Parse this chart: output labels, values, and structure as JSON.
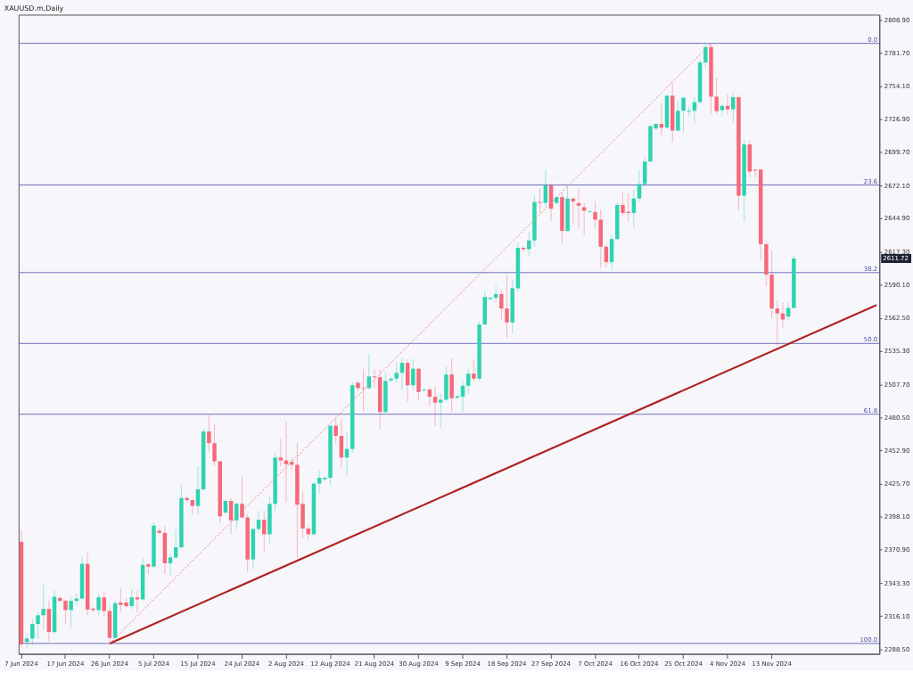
{
  "chart_data": {
    "type": "candlestick",
    "title": "XAUUSD.m,Daily",
    "categories": [
      "7 Jun 2024",
      null,
      null,
      null,
      null,
      null,
      null,
      null,
      "17 Jun 2024",
      null,
      null,
      null,
      null,
      null,
      null,
      null,
      "26 Jun 2024",
      null,
      null,
      null,
      null,
      null,
      null,
      null,
      "5 Jul 2024",
      null,
      null,
      null,
      null,
      null,
      null,
      null,
      "15 Jul 2024",
      null,
      null,
      null,
      null,
      null,
      null,
      null,
      "24 Jul 2024",
      null,
      null,
      null,
      null,
      null,
      null,
      null,
      "2 Aug 2024",
      null,
      null,
      null,
      null,
      null,
      null,
      null,
      "12 Aug 2024",
      null,
      null,
      null,
      null,
      null,
      null,
      null,
      "21 Aug 2024",
      null,
      null,
      null,
      null,
      null,
      null,
      null,
      "30 Aug 2024",
      null,
      null,
      null,
      null,
      null,
      null,
      null,
      "9 Sep 2024",
      null,
      null,
      null,
      null,
      null,
      null,
      null,
      "18 Sep 2024",
      null,
      null,
      null,
      null,
      null,
      null,
      null,
      "27 Sep 2024",
      null,
      null,
      null,
      null,
      null,
      null,
      null,
      "7 Oct 2024",
      null,
      null,
      null,
      null,
      null,
      null,
      null,
      "16 Oct 2024",
      null,
      null,
      null,
      null,
      null,
      null,
      null,
      "25 Oct 2024",
      null,
      null,
      null,
      null,
      null,
      null,
      null,
      "4 Nov 2024",
      null,
      null,
      null,
      null,
      null,
      null,
      null,
      "13 Nov 2024",
      null,
      null,
      null,
      null,
      null,
      null,
      null,
      null,
      null,
      null,
      null,
      null,
      null,
      null,
      null,
      null,
      null,
      null,
      null
    ],
    "ohlc": [
      [
        2377.5,
        2387.6,
        2290.0,
        2292.8
      ],
      [
        2294.7,
        2301.2,
        2289.5,
        2297.6
      ],
      [
        2297.6,
        2313.9,
        2292.3,
        2309.6
      ],
      [
        2309.6,
        2319.2,
        2297.6,
        2316.8
      ],
      [
        2316.8,
        2341.9,
        2304.8,
        2322.0
      ],
      [
        2322.0,
        2328.7,
        2295.2,
        2302.9
      ],
      [
        2302.9,
        2337.1,
        2301.2,
        2332.1
      ],
      [
        2331.1,
        2332.3,
        2327.5,
        2328.7
      ],
      [
        2328.7,
        2329.9,
        2310.1,
        2321.1
      ],
      [
        2321.1,
        2332.3,
        2306.7,
        2328.7
      ],
      [
        2328.7,
        2334.7,
        2325.1,
        2330.6
      ],
      [
        2330.6,
        2365.3,
        2328.7,
        2359.3
      ],
      [
        2359.3,
        2368.9,
        2316.8,
        2321.5
      ],
      [
        2322.3,
        2323.9,
        2319.2,
        2321.1
      ],
      [
        2321.1,
        2334.7,
        2316.8,
        2331.6
      ],
      [
        2331.6,
        2337.1,
        2315.6,
        2320.3
      ],
      [
        2320.3,
        2323.9,
        2293.5,
        2298.1
      ],
      [
        2298.1,
        2328.7,
        2296.4,
        2326.8
      ],
      [
        2327.3,
        2339.5,
        2319.2,
        2325.4
      ],
      [
        2327.3,
        2331.1,
        2322.7,
        2324.4
      ],
      [
        2324.4,
        2338.3,
        2322.0,
        2331.6
      ],
      [
        2331.6,
        2337.1,
        2319.2,
        2329.9
      ],
      [
        2329.9,
        2364.6,
        2328.7,
        2358.4
      ],
      [
        2358.9,
        2359.8,
        2350.7,
        2357.0
      ],
      [
        2357.0,
        2393.3,
        2356.2,
        2390.9
      ],
      [
        2386.6,
        2388.5,
        2383.8,
        2384.9
      ],
      [
        2384.9,
        2390.9,
        2350.7,
        2359.8
      ],
      [
        2359.8,
        2367.0,
        2349.8,
        2364.6
      ],
      [
        2364.6,
        2387.3,
        2363.4,
        2373.0
      ],
      [
        2373.0,
        2424.4,
        2371.8,
        2413.7
      ],
      [
        2413.7,
        2414.9,
        2410.1,
        2412.0
      ],
      [
        2412.0,
        2413.0,
        2400.5,
        2407.2
      ],
      [
        2407.2,
        2440.0,
        2400.5,
        2420.9
      ],
      [
        2420.9,
        2471.1,
        2419.5,
        2468.7
      ],
      [
        2468.7,
        2482.4,
        2452.0,
        2459.1
      ],
      [
        2459.1,
        2474.7,
        2440.0,
        2444.1
      ],
      [
        2444.1,
        2444.5,
        2393.3,
        2398.6
      ],
      [
        2401.7,
        2412.5,
        2400.5,
        2411.3
      ],
      [
        2411.3,
        2413.7,
        2384.2,
        2395.3
      ],
      [
        2395.3,
        2410.1,
        2388.1,
        2408.9
      ],
      [
        2408.9,
        2431.6,
        2396.9,
        2397.6
      ],
      [
        2397.6,
        2400.5,
        2352.7,
        2362.9
      ],
      [
        2362.9,
        2389.8,
        2355.1,
        2388.1
      ],
      [
        2388.1,
        2402.9,
        2385.0,
        2395.7
      ],
      [
        2395.7,
        2402.9,
        2369.4,
        2383.8
      ],
      [
        2383.8,
        2414.9,
        2376.6,
        2408.9
      ],
      [
        2408.9,
        2450.8,
        2402.9,
        2447.2
      ],
      [
        2447.2,
        2462.7,
        2440.0,
        2444.8
      ],
      [
        2444.8,
        2477.1,
        2410.1,
        2441.7
      ],
      [
        2443.6,
        2447.2,
        2437.6,
        2441.2
      ],
      [
        2441.2,
        2459.1,
        2364.2,
        2408.2
      ],
      [
        2408.9,
        2418.5,
        2380.4,
        2388.5
      ],
      [
        2388.5,
        2390.9,
        2379.0,
        2383.8
      ],
      [
        2383.8,
        2426.8,
        2382.6,
        2425.6
      ],
      [
        2425.6,
        2436.4,
        2417.3,
        2430.4
      ],
      [
        2429.2,
        2431.6,
        2428.0,
        2430.4
      ],
      [
        2430.4,
        2473.8,
        2424.4,
        2473.5
      ],
      [
        2473.5,
        2479.5,
        2458.0,
        2465.1
      ],
      [
        2465.1,
        2479.5,
        2438.8,
        2447.2
      ],
      [
        2447.2,
        2467.5,
        2432.8,
        2454.3
      ],
      [
        2454.3,
        2509.4,
        2450.8,
        2507.0
      ],
      [
        2508.9,
        2510.6,
        2502.2,
        2504.6
      ],
      [
        2504.6,
        2520.2,
        2485.5,
        2504.1
      ],
      [
        2504.6,
        2532.1,
        2503.4,
        2514.2
      ],
      [
        2514.2,
        2520.2,
        2504.6,
        2513.5
      ],
      [
        2513.5,
        2520.2,
        2470.4,
        2484.8
      ],
      [
        2484.8,
        2517.7,
        2484.0,
        2510.5
      ],
      [
        2511.0,
        2514.1,
        2509.3,
        2512.4
      ],
      [
        2512.4,
        2526.1,
        2509.3,
        2517.2
      ],
      [
        2517.2,
        2529.7,
        2503.4,
        2525.4
      ],
      [
        2525.4,
        2528.5,
        2493.3,
        2506.9
      ],
      [
        2506.9,
        2528.5,
        2503.4,
        2520.6
      ],
      [
        2520.6,
        2521.3,
        2494.3,
        2501.4
      ],
      [
        2502.7,
        2504.1,
        2501.4,
        2503.4
      ],
      [
        2503.4,
        2505.8,
        2489.5,
        2497.4
      ],
      [
        2497.4,
        2505.8,
        2473.4,
        2492.6
      ],
      [
        2492.6,
        2499.8,
        2471.8,
        2495.0
      ],
      [
        2495.0,
        2523.0,
        2493.8,
        2515.8
      ],
      [
        2515.8,
        2529.2,
        2484.7,
        2496.2
      ],
      [
        2496.7,
        2498.6,
        2495.7,
        2497.9
      ],
      [
        2497.4,
        2510.5,
        2484.7,
        2506.5
      ],
      [
        2506.5,
        2520.6,
        2499.8,
        2516.5
      ],
      [
        2516.5,
        2528.5,
        2510.5,
        2512.4
      ],
      [
        2512.4,
        2559.6,
        2510.5,
        2557.2
      ],
      [
        2557.2,
        2585.2,
        2556.5,
        2579.9
      ],
      [
        2578.2,
        2579.9,
        2577.1,
        2579.2
      ],
      [
        2579.2,
        2589.0,
        2575.2,
        2582.3
      ],
      [
        2582.3,
        2585.9,
        2560.8,
        2570.4
      ],
      [
        2570.4,
        2599.1,
        2546.4,
        2558.9
      ],
      [
        2558.9,
        2594.3,
        2550.0,
        2587.1
      ],
      [
        2587.1,
        2624.9,
        2584.2,
        2620.6
      ],
      [
        2620.6,
        2621.8,
        2617.7,
        2619.4
      ],
      [
        2619.4,
        2633.8,
        2613.4,
        2626.6
      ],
      [
        2626.6,
        2663.7,
        2621.8,
        2658.4
      ],
      [
        2658.4,
        2669.7,
        2649.3,
        2657.7
      ],
      [
        2657.7,
        2685.2,
        2654.1,
        2672.1
      ],
      [
        2672.1,
        2673.7,
        2642.6,
        2652.9
      ],
      [
        2657.7,
        2663.7,
        2656.5,
        2662.5
      ],
      [
        2662.5,
        2666.1,
        2624.2,
        2634.5
      ],
      [
        2634.5,
        2672.1,
        2633.8,
        2661.3
      ],
      [
        2661.3,
        2662.5,
        2640.3,
        2658.9
      ],
      [
        2657.5,
        2669.7,
        2636.2,
        2655.3
      ],
      [
        2654.1,
        2657.7,
        2631.4,
        2651.3
      ],
      [
        2650.1,
        2651.7,
        2649.4,
        2650.6
      ],
      [
        2650.1,
        2658.9,
        2637.4,
        2643.8
      ],
      [
        2643.8,
        2652.2,
        2603.9,
        2621.4
      ],
      [
        2621.4,
        2623.0,
        2604.4,
        2608.7
      ],
      [
        2608.7,
        2630.7,
        2602.7,
        2627.8
      ],
      [
        2627.8,
        2657.7,
        2626.6,
        2656.0
      ],
      [
        2656.0,
        2666.1,
        2646.9,
        2649.4
      ],
      [
        2650.3,
        2665.6,
        2642.6,
        2649.4
      ],
      [
        2649.4,
        2668.5,
        2637.4,
        2661.3
      ],
      [
        2661.3,
        2684.8,
        2658.9,
        2673.3
      ],
      [
        2673.3,
        2696.0,
        2671.4,
        2691.9
      ],
      [
        2691.9,
        2722.3,
        2691.2,
        2721.1
      ],
      [
        2719.2,
        2723.5,
        2718.3,
        2723.0
      ],
      [
        2723.0,
        2739.8,
        2713.5,
        2719.9
      ],
      [
        2719.9,
        2747.9,
        2719.2,
        2746.3
      ],
      [
        2746.3,
        2757.0,
        2708.0,
        2717.5
      ],
      [
        2717.5,
        2742.7,
        2716.3,
        2733.8
      ],
      [
        2733.8,
        2745.1,
        2715.9,
        2744.6
      ],
      [
        2733.1,
        2736.7,
        2729.5,
        2733.8
      ],
      [
        2733.8,
        2745.1,
        2723.5,
        2741.0
      ],
      [
        2741.0,
        2776.2,
        2740.3,
        2773.8
      ],
      [
        2773.8,
        2788.5,
        2769.5,
        2786.5
      ],
      [
        2786.5,
        2789.6,
        2730.7,
        2745.5
      ],
      [
        2745.5,
        2761.3,
        2730.7,
        2733.6
      ],
      [
        2734.3,
        2739.8,
        2729.5,
        2737.9
      ],
      [
        2737.9,
        2747.5,
        2730.7,
        2735.0
      ],
      [
        2735.0,
        2749.4,
        2723.5,
        2745.1
      ],
      [
        2745.1,
        2747.0,
        2651.7,
        2663.7
      ],
      [
        2663.7,
        2709.7,
        2642.6,
        2706.1
      ],
      [
        2706.1,
        2709.7,
        2679.3,
        2683.6
      ],
      [
        2685.3,
        2685.7,
        2678.5,
        2684.5
      ],
      [
        2685.3,
        2685.7,
        2609.9,
        2623.5
      ],
      [
        2623.5,
        2626.6,
        2589.0,
        2598.4
      ],
      [
        2598.4,
        2618.2,
        2562.0,
        2570.4
      ],
      [
        2570.4,
        2577.1,
        2539.3,
        2566.3
      ],
      [
        2566.3,
        2575.6,
        2554.1,
        2561.3
      ],
      [
        2563.7,
        2575.6,
        2560.8,
        2570.9
      ],
      [
        2570.9,
        2613.9,
        2570.4,
        2611.7
      ],
      null,
      null,
      null,
      null,
      null,
      null,
      null,
      null,
      null,
      null,
      null,
      null,
      null,
      null,
      null
    ],
    "colors": [
      "#f7687a",
      "#2ed3b0",
      "#2ed3b0",
      "#2ed3b0",
      "#2ed3b0",
      "#f7687a",
      "#2ed3b0",
      "#f7687a",
      "#f7687a",
      "#2ed3b0",
      "#2ed3b0",
      "#2ed3b0",
      "#f7687a",
      "#f7687a",
      "#2ed3b0",
      "#f7687a",
      "#f7687a",
      "#2ed3b0",
      "#f7687a",
      "#f7687a",
      "#2ed3b0",
      "#f7687a",
      "#2ed3b0",
      "#f7687a",
      "#2ed3b0",
      "#f7687a",
      "#f7687a",
      "#2ed3b0",
      "#2ed3b0",
      "#2ed3b0",
      "#f7687a",
      "#f7687a",
      "#2ed3b0",
      "#2ed3b0",
      "#f7687a",
      "#f7687a",
      "#f7687a",
      "#2ed3b0",
      "#f7687a",
      "#2ed3b0",
      "#f7687a",
      "#f7687a",
      "#2ed3b0",
      "#2ed3b0",
      "#f7687a",
      "#2ed3b0",
      "#2ed3b0",
      "#f7687a",
      "#f7687a",
      "#f7687a",
      "#f7687a",
      "#f7687a",
      "#f7687a",
      "#2ed3b0",
      "#2ed3b0",
      "#2ed3b0",
      "#2ed3b0",
      "#f7687a",
      "#f7687a",
      "#2ed3b0",
      "#2ed3b0",
      "#f7687a",
      "#f7687a",
      "#2ed3b0",
      "#f7687a",
      "#f7687a",
      "#2ed3b0",
      "#2ed3b0",
      "#2ed3b0",
      "#2ed3b0",
      "#f7687a",
      "#2ed3b0",
      "#f7687a",
      "#2ed3b0",
      "#f7687a",
      "#f7687a",
      "#2ed3b0",
      "#2ed3b0",
      "#f7687a",
      "#2ed3b0",
      "#2ed3b0",
      "#2ed3b0",
      "#f7687a",
      "#2ed3b0",
      "#2ed3b0",
      "#2ed3b0",
      "#2ed3b0",
      "#f7687a",
      "#f7687a",
      "#2ed3b0",
      "#2ed3b0",
      "#f7687a",
      "#2ed3b0",
      "#2ed3b0",
      "#f7687a",
      "#2ed3b0",
      "#f7687a",
      "#2ed3b0",
      "#f7687a",
      "#2ed3b0",
      "#f7687a",
      "#f7687a",
      "#f7687a",
      "#2ed3b0",
      "#f7687a",
      "#f7687a",
      "#f7687a",
      "#2ed3b0",
      "#2ed3b0",
      "#f7687a",
      "#f7687a",
      "#2ed3b0",
      "#2ed3b0",
      "#2ed3b0",
      "#2ed3b0",
      "#2ed3b0",
      "#f7687a",
      "#2ed3b0",
      "#f7687a",
      "#2ed3b0",
      "#2ed3b0",
      "#2ed3b0",
      "#2ed3b0",
      "#2ed3b0",
      "#2ed3b0",
      "#f7687a",
      "#f7687a",
      "#2ed3b0",
      "#f7687a",
      "#2ed3b0",
      "#f7687a",
      "#2ed3b0",
      "#f7687a",
      "#f7687a",
      "#f7687a",
      "#f7687a",
      "#f7687a",
      "#f7687a",
      "#f7687a",
      "#2ed3b0",
      "#2ed3b0",
      null,
      null,
      null,
      null,
      null,
      null,
      null,
      null,
      null,
      null,
      null,
      null,
      null,
      null,
      null
    ],
    "series": [
      {
        "type": "line",
        "line_style": "solid",
        "color": "#b22222",
        "values": [
          null,
          null,
          null,
          null,
          null,
          null,
          null,
          null,
          null,
          null,
          null,
          null,
          null,
          null,
          null,
          null,
          2293.5,
          null,
          null,
          null,
          null,
          null,
          null,
          null,
          null,
          null,
          null,
          null,
          null,
          null,
          null,
          null,
          null,
          null,
          null,
          null,
          null,
          null,
          null,
          null,
          null,
          null,
          null,
          null,
          null,
          null,
          null,
          null,
          null,
          null,
          null,
          null,
          null,
          null,
          null,
          null,
          null,
          null,
          null,
          null,
          null,
          null,
          null,
          null,
          null,
          null,
          null,
          null,
          null,
          null,
          null,
          null,
          null,
          null,
          null,
          null,
          null,
          null,
          null,
          null,
          null,
          null,
          null,
          null,
          null,
          null,
          null,
          null,
          null,
          null,
          null,
          null,
          null,
          null,
          null,
          null,
          null,
          null,
          null,
          null,
          null,
          null,
          null,
          null,
          null,
          null,
          null,
          null,
          null,
          null,
          null,
          null,
          null,
          null,
          null,
          null,
          null,
          null,
          null,
          null,
          null,
          null,
          null,
          null,
          null,
          null,
          null,
          null,
          null,
          null,
          null,
          null,
          null,
          null,
          null,
          null,
          null,
          null,
          null,
          null,
          null,
          null,
          null,
          null,
          null,
          null,
          null,
          null,
          null,
          null,
          null,
          null,
          null,
          null,
          null,
          2573.2
        ]
      },
      {
        "type": "line",
        "line_style": "dotted",
        "color": "#f08080",
        "values": [
          null,
          null,
          null,
          null,
          null,
          null,
          null,
          null,
          null,
          null,
          null,
          null,
          null,
          null,
          null,
          null,
          2293.5,
          null,
          null,
          null,
          null,
          null,
          null,
          null,
          null,
          null,
          null,
          null,
          null,
          null,
          null,
          null,
          null,
          null,
          null,
          null,
          null,
          null,
          null,
          null,
          null,
          null,
          null,
          null,
          null,
          null,
          null,
          null,
          null,
          null,
          null,
          null,
          null,
          null,
          null,
          null,
          null,
          null,
          null,
          null,
          null,
          null,
          null,
          null,
          null,
          null,
          null,
          null,
          null,
          null,
          null,
          null,
          null,
          null,
          null,
          null,
          null,
          null,
          null,
          null,
          null,
          null,
          null,
          null,
          null,
          null,
          null,
          null,
          null,
          null,
          null,
          null,
          null,
          null,
          null,
          null,
          null,
          null,
          null,
          null,
          null,
          null,
          null,
          null,
          null,
          null,
          null,
          null,
          null,
          null,
          null,
          null,
          null,
          null,
          null,
          null,
          null,
          null,
          null,
          null,
          null,
          null,
          null,
          null,
          null,
          2789.6,
          null,
          null,
          null,
          null,
          null,
          null,
          null,
          null,
          null,
          null,
          null,
          null,
          null,
          null,
          null,
          null,
          null,
          null,
          null,
          null,
          null,
          null,
          null,
          null,
          null,
          null,
          null,
          null,
          null,
          null
        ]
      }
    ],
    "ref_lines": [
      {
        "axis": "y",
        "value": 2789.6,
        "color": "#7070c0"
      },
      {
        "axis": "y",
        "value": 2672.5,
        "color": "#7070c0"
      },
      {
        "axis": "y",
        "value": 2600.1,
        "color": "#7070c0"
      },
      {
        "axis": "y",
        "value": 2541.5,
        "color": "#7070c0"
      },
      {
        "axis": "y",
        "value": 2483.0,
        "color": "#7070c0"
      },
      {
        "axis": "y",
        "value": 2293.5,
        "color": "#7070c0"
      }
    ],
    "annotations": [
      {
        "text": "0.0",
        "y": 2789.6
      },
      {
        "text": "23.6",
        "y": 2672.5
      },
      {
        "text": "38.2",
        "y": 2600.1
      },
      {
        "text": "50.0",
        "y": 2541.5
      },
      {
        "text": "61.8",
        "y": 2483.0
      },
      {
        "text": "100.0",
        "y": 2293.5
      },
      "2611.72"
    ],
    "ylim": [
      2284.9,
      2813.3
    ],
    "yticks": [
      {
        "value": 2288.5,
        "label": "2288.50"
      },
      {
        "value": 2316.1,
        "label": "2316.10"
      },
      {
        "value": 2343.3,
        "label": "2343.30"
      },
      {
        "value": 2370.9,
        "label": "2370.90"
      },
      {
        "value": 2398.1,
        "label": "2398.10"
      },
      {
        "value": 2425.7,
        "label": "2425.70"
      },
      {
        "value": 2452.9,
        "label": "2452.90"
      },
      {
        "value": 2480.5,
        "label": "2480.50"
      },
      {
        "value": 2507.7,
        "label": "2507.70"
      },
      {
        "value": 2535.3,
        "label": "2535.30"
      },
      {
        "value": 2562.5,
        "label": "2562.50"
      },
      {
        "value": 2590.1,
        "label": "2590.10"
      },
      {
        "value": 2617.3,
        "label": "2617.30"
      },
      {
        "value": 2644.9,
        "label": "2644.90"
      },
      {
        "value": 2672.1,
        "label": "2672.10"
      },
      {
        "value": 2699.7,
        "label": "2699.70"
      },
      {
        "value": 2726.9,
        "label": "2726.90"
      },
      {
        "value": 2754.1,
        "label": "2754.10"
      },
      {
        "value": 2781.7,
        "label": "2781.70"
      },
      {
        "value": 2808.9,
        "label": "2808.90"
      }
    ]
  }
}
